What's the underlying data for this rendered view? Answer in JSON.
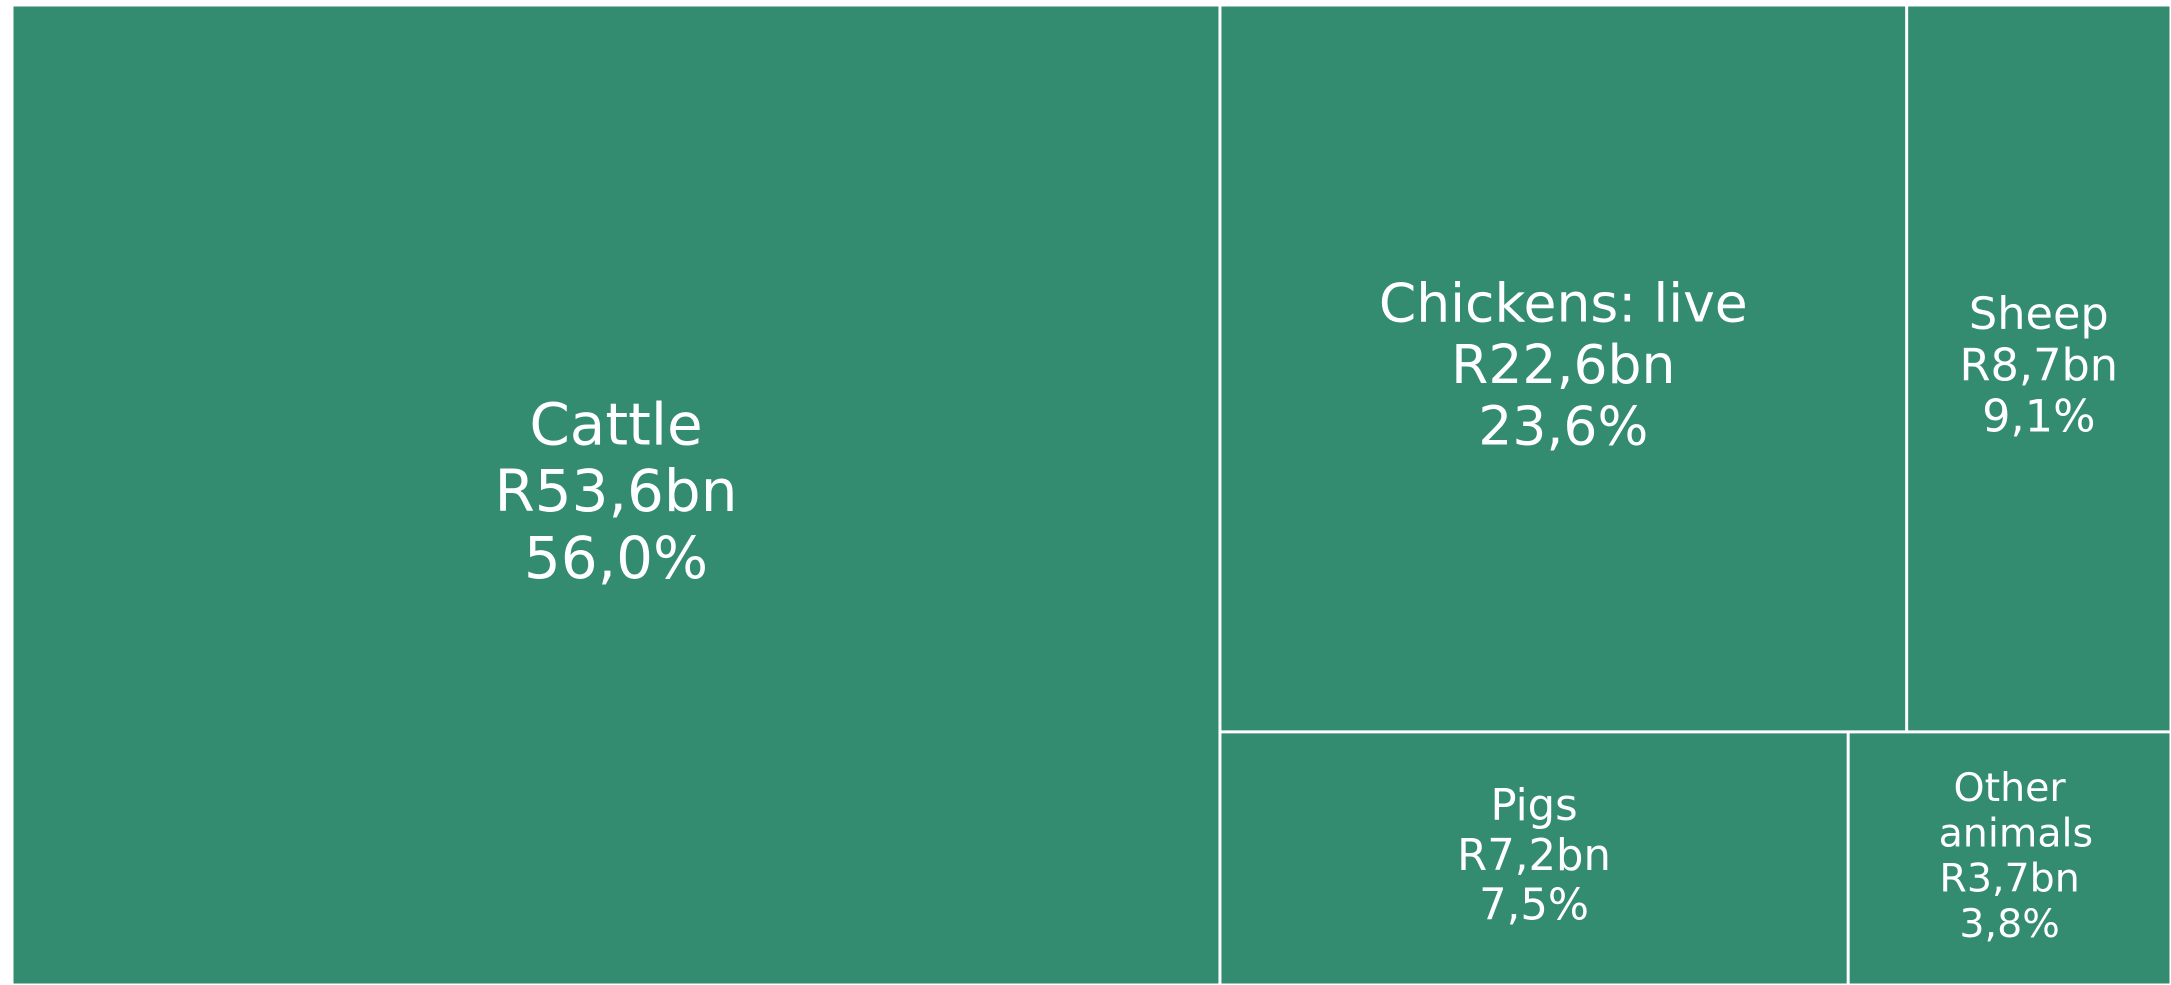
{
  "chart_data": {
    "type": "treemap",
    "categories": [
      "Cattle",
      "Chickens: live",
      "Sheep",
      "Pigs",
      "Other animals"
    ],
    "values": [
      53.6,
      22.6,
      8.7,
      7.2,
      3.7
    ],
    "value_labels": [
      "R53,6bn",
      "R22,6bn",
      "R8,7bn",
      "R7,2bn",
      "R3,7bn"
    ],
    "percentages": [
      56.0,
      23.6,
      9.1,
      7.5,
      3.8
    ],
    "percentage_labels": [
      "56,0%",
      "23,6%",
      "9,1%",
      "7,5%",
      "3,8%"
    ],
    "color": "#338b70"
  }
}
